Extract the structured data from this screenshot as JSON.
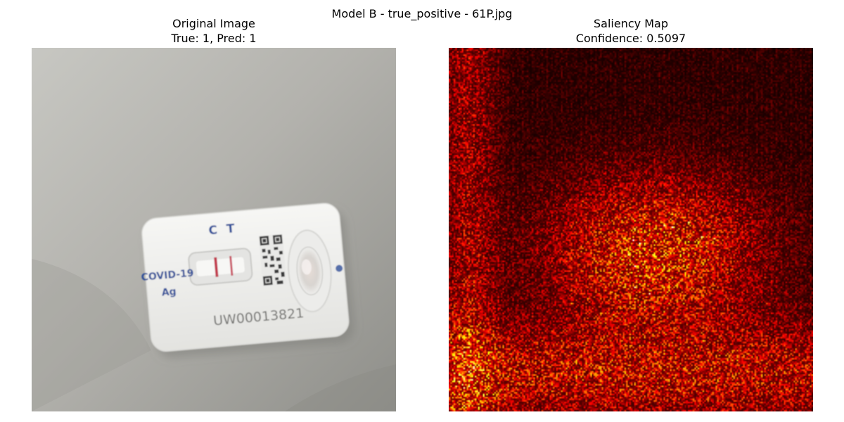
{
  "figure_title": "Model B - true_positive - 61P.jpg",
  "panels": {
    "original": {
      "title": "Original Image",
      "subtitle": "True: 1, Pred: 1",
      "photo": {
        "cassette_label_line1": "COVID-19",
        "cassette_label_line2": "Ag",
        "marker_control": "C",
        "marker_test": "T",
        "serial_number": "UW00013821",
        "colors": {
          "background": "#a9a8a3",
          "cassette": "#f1f1ef",
          "label_blue": "#2f4f9a",
          "test_line": "#c23a4e"
        }
      }
    },
    "saliency": {
      "title": "Saliency Map",
      "subtitle": "Confidence: 0.5097",
      "colormap": "hot"
    }
  }
}
